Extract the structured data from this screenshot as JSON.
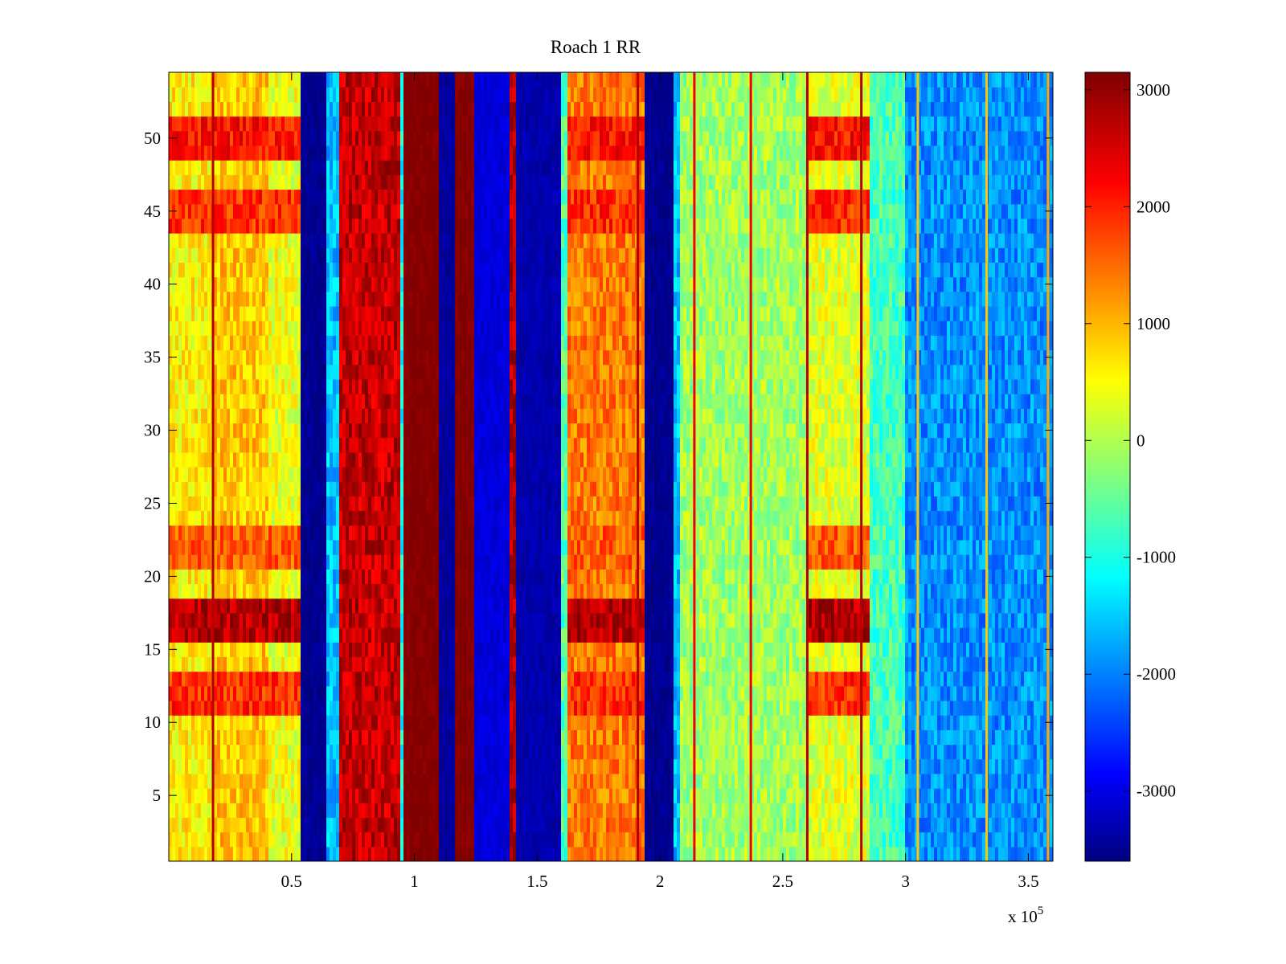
{
  "chart_data": {
    "type": "heatmap",
    "title": "Roach 1 RR",
    "xlabel": "",
    "ylabel": "",
    "x_multiplier_label": "x 10",
    "x_multiplier_exponent": "5",
    "xlim": [
      0,
      360000
    ],
    "ylim": [
      0.5,
      54.5
    ],
    "rows": 54,
    "colormap": "jet",
    "clim": [
      -3600,
      3150
    ],
    "x_ticks": [
      {
        "value": 50000,
        "label": "0.5"
      },
      {
        "value": 100000,
        "label": "1"
      },
      {
        "value": 150000,
        "label": "1.5"
      },
      {
        "value": 200000,
        "label": "2"
      },
      {
        "value": 250000,
        "label": "2.5"
      },
      {
        "value": 300000,
        "label": "3"
      },
      {
        "value": 350000,
        "label": "3.5"
      }
    ],
    "y_ticks": [
      {
        "value": 5,
        "label": "5"
      },
      {
        "value": 10,
        "label": "10"
      },
      {
        "value": 15,
        "label": "15"
      },
      {
        "value": 20,
        "label": "20"
      },
      {
        "value": 25,
        "label": "25"
      },
      {
        "value": 30,
        "label": "30"
      },
      {
        "value": 35,
        "label": "35"
      },
      {
        "value": 40,
        "label": "40"
      },
      {
        "value": 45,
        "label": "45"
      },
      {
        "value": 50,
        "label": "50"
      }
    ],
    "colorbar_ticks": [
      {
        "value": 3000,
        "label": "3000"
      },
      {
        "value": 2000,
        "label": "2000"
      },
      {
        "value": 1000,
        "label": "1000"
      },
      {
        "value": 0,
        "label": "0"
      },
      {
        "value": -1000,
        "label": "-1000"
      },
      {
        "value": -2000,
        "label": "-2000"
      },
      {
        "value": -3000,
        "label": "-3000"
      }
    ],
    "column_bands": [
      {
        "x_start": 0,
        "x_end": 18000,
        "value": 700
      },
      {
        "x_start": 18000,
        "x_end": 40000,
        "value": 1000
      },
      {
        "x_start": 40000,
        "x_end": 54000,
        "value": 500
      },
      {
        "x_start": 54000,
        "x_end": 64000,
        "value": -3500
      },
      {
        "x_start": 64000,
        "x_end": 70000,
        "value": -1500
      },
      {
        "x_start": 70000,
        "x_end": 94000,
        "value": 2700
      },
      {
        "x_start": 94000,
        "x_end": 96000,
        "value": -1000
      },
      {
        "x_start": 96000,
        "x_end": 110000,
        "value": 3150
      },
      {
        "x_start": 110000,
        "x_end": 117000,
        "value": -3400
      },
      {
        "x_start": 117000,
        "x_end": 124000,
        "value": 3150
      },
      {
        "x_start": 124000,
        "x_end": 139000,
        "value": -3000
      },
      {
        "x_start": 139000,
        "x_end": 142000,
        "value": 2800
      },
      {
        "x_start": 142000,
        "x_end": 160000,
        "value": -3300
      },
      {
        "x_start": 160000,
        "x_end": 162000,
        "value": -500
      },
      {
        "x_start": 162000,
        "x_end": 194000,
        "value": 1500
      },
      {
        "x_start": 194000,
        "x_end": 205000,
        "value": -3500
      },
      {
        "x_start": 205000,
        "x_end": 208000,
        "value": -1500
      },
      {
        "x_start": 208000,
        "x_end": 260000,
        "value": 0
      },
      {
        "x_start": 260000,
        "x_end": 285000,
        "value": 400
      },
      {
        "x_start": 285000,
        "x_end": 300000,
        "value": -600
      },
      {
        "x_start": 300000,
        "x_end": 360000,
        "value": -1800
      }
    ],
    "row_bands": [
      {
        "y_start": 16,
        "y_end": 18,
        "value": 2800
      },
      {
        "y_start": 11,
        "y_end": 13,
        "value": 2000
      },
      {
        "y_start": 21,
        "y_end": 23.5,
        "value": 1700
      },
      {
        "y_start": 44,
        "y_end": 46.5,
        "value": 2000
      },
      {
        "y_start": 48.5,
        "y_end": 51.5,
        "value": 2200
      }
    ],
    "stripes": [
      {
        "x": 18000,
        "value": 2800
      },
      {
        "x": 191000,
        "value": 2800
      },
      {
        "x": 214000,
        "value": 2400
      },
      {
        "x": 237000,
        "value": 2400
      },
      {
        "x": 260000,
        "value": 2800
      },
      {
        "x": 282000,
        "value": 2800
      },
      {
        "x": 305000,
        "value": 1000
      },
      {
        "x": 333000,
        "value": 1000
      },
      {
        "x": 358000,
        "value": 1200
      }
    ]
  }
}
